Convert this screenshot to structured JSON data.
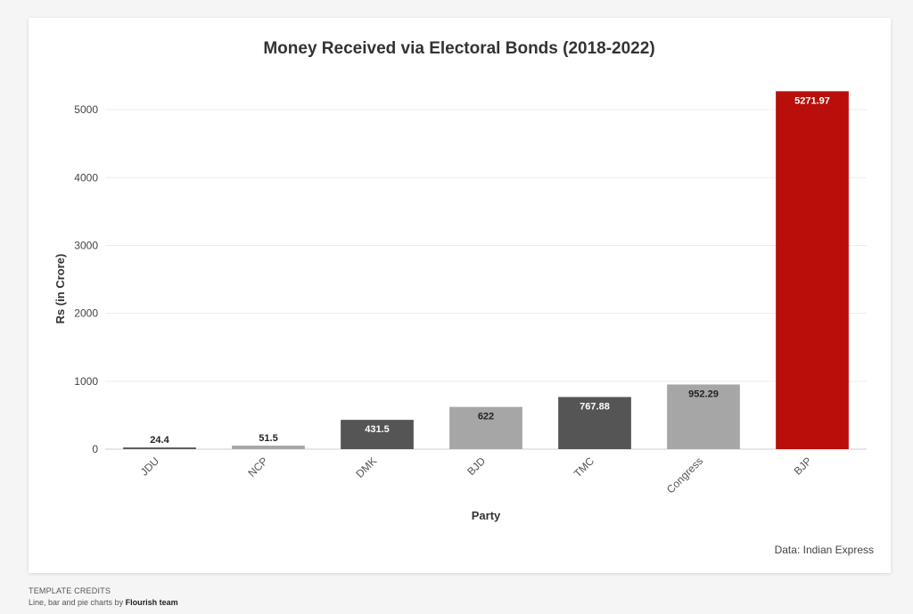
{
  "chart_data": {
    "type": "bar",
    "title": "Money Received via Electoral Bonds (2018-2022)",
    "xlabel": "Party",
    "ylabel": "Rs (in Crore)",
    "categories": [
      "JDU",
      "NCP",
      "DMK",
      "BJD",
      "TMC",
      "Congress",
      "BJP"
    ],
    "values": [
      24.4,
      51.5,
      431.5,
      622,
      767.88,
      952.29,
      5271.97
    ],
    "value_labels": [
      "24.4",
      "51.5",
      "431.5",
      "622",
      "767.88",
      "952.29",
      "5271.97"
    ],
    "colors": [
      "#555555",
      "#a6a6a6",
      "#555555",
      "#a6a6a6",
      "#555555",
      "#a6a6a6",
      "#b80f0a"
    ],
    "ylim": [
      0,
      5500
    ],
    "yticks": [
      0,
      1000,
      2000,
      3000,
      4000,
      5000
    ],
    "grid": true,
    "legend": "none"
  },
  "source": "Data: Indian Express",
  "credits": {
    "heading": "TEMPLATE CREDITS",
    "line_prefix": "Line, bar and pie charts by ",
    "author": "Flourish team"
  }
}
